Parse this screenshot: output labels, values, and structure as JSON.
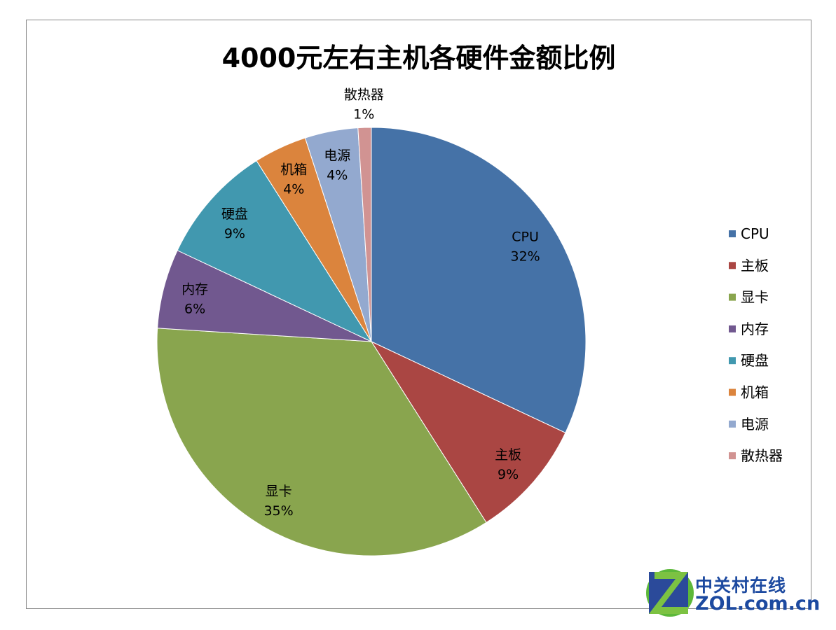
{
  "chart_data": {
    "type": "pie",
    "title": "4000元左右主机各硬件金额比例",
    "categories": [
      "CPU",
      "主板",
      "显卡",
      "内存",
      "硬盘",
      "机箱",
      "电源",
      "散热器"
    ],
    "values": [
      32,
      9,
      35,
      6,
      9,
      4,
      4,
      1
    ],
    "labels": [
      "32%",
      "9%",
      "35%",
      "6%",
      "9%",
      "4%",
      "4%",
      "1%"
    ],
    "colors": [
      "#4572A7",
      "#AA4643",
      "#89A54E",
      "#71588F",
      "#4198AF",
      "#DB843D",
      "#93A9CF",
      "#D19392"
    ],
    "start": "12 o'clock, clockwise",
    "legend": "right"
  },
  "watermark": {
    "cn": "中关村在线",
    "en": "ZOL.COM.cn"
  }
}
